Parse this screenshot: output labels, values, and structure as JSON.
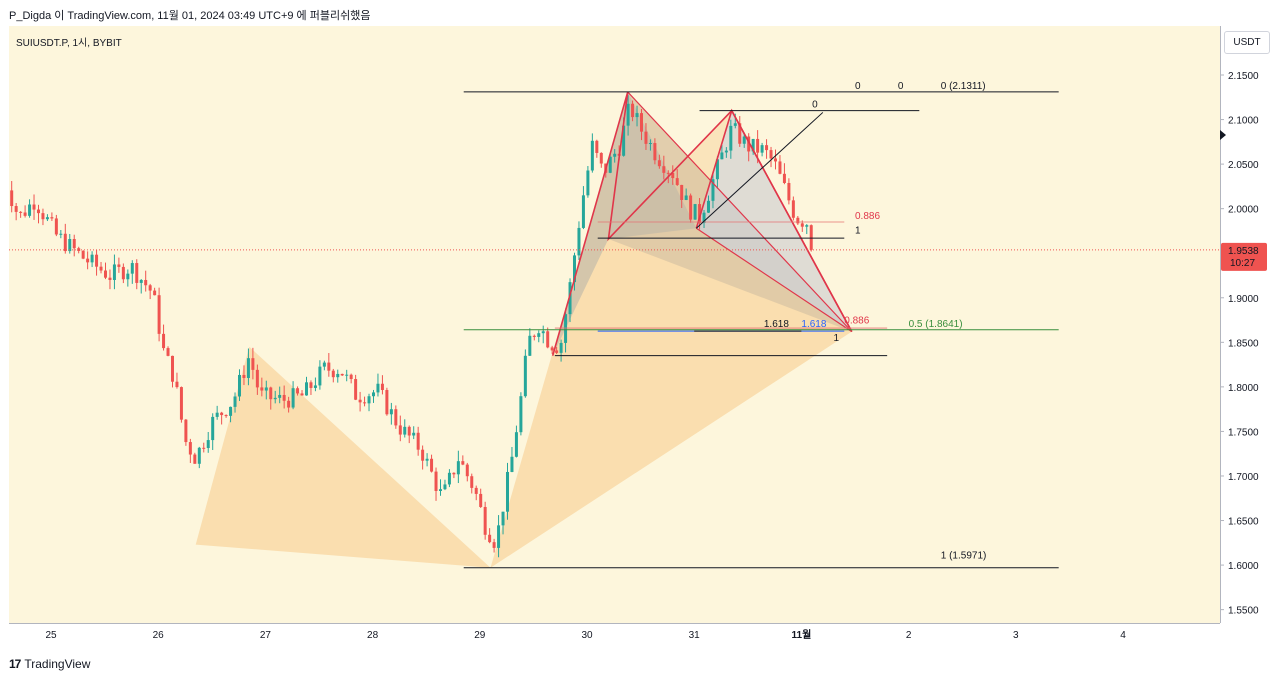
{
  "header": {
    "text": "P_Digda 이 TradingView.com, 11월 01, 2024 03:49 UTC+9 에 퍼블리쉬했음"
  },
  "symbol": "SUIUSDT.P, 1시, BYBIT",
  "currency_button": "USDT",
  "footer": {
    "logo_mark": "17",
    "logo_text": "TradingView"
  },
  "colors": {
    "background": "#fdf6dc",
    "up": "#26a69a",
    "down": "#ef5350",
    "pattern_fill": "#f8d6a0",
    "pattern_gray": "#b4b2a8",
    "harmonic_line": "#e0364a",
    "last_price_bg": "#ef5350"
  },
  "chart_data": {
    "type": "candlestick",
    "x_ticks": [
      "25",
      "26",
      "27",
      "28",
      "29",
      "30",
      "31",
      "11월",
      "2",
      "3",
      "4"
    ],
    "y_ticks": [
      "2.1500",
      "2.1000",
      "2.0500",
      "2.0000",
      "1.9500",
      "1.9000",
      "1.8500",
      "1.8000",
      "1.7500",
      "1.7000",
      "1.6500",
      "1.6000",
      "1.5500"
    ],
    "y_values": [
      2.15,
      2.1,
      2.05,
      2.0,
      1.95,
      1.9,
      1.85,
      1.8,
      1.75,
      1.7,
      1.65,
      1.6,
      1.55
    ],
    "ylim": [
      1.535,
      2.205
    ],
    "last_price": "1.9538",
    "last_price_value": 1.9538,
    "countdown": "10:27",
    "price_path": [
      [
        24.55,
        2.04
      ],
      [
        24.7,
        1.99
      ],
      [
        24.85,
        2.01
      ],
      [
        25.05,
        1.97
      ],
      [
        25.3,
        1.945
      ],
      [
        25.55,
        1.925
      ],
      [
        25.75,
        1.935
      ],
      [
        25.95,
        1.905
      ],
      [
        26.05,
        1.84
      ],
      [
        26.15,
        1.81
      ],
      [
        26.25,
        1.74
      ],
      [
        26.35,
        1.72
      ],
      [
        26.5,
        1.76
      ],
      [
        26.7,
        1.785
      ],
      [
        26.85,
        1.835
      ],
      [
        26.95,
        1.79
      ],
      [
        27.15,
        1.785
      ],
      [
        27.35,
        1.79
      ],
      [
        27.55,
        1.82
      ],
      [
        27.7,
        1.82
      ],
      [
        27.85,
        1.79
      ],
      [
        28.05,
        1.795
      ],
      [
        28.25,
        1.755
      ],
      [
        28.45,
        1.73
      ],
      [
        28.65,
        1.675
      ],
      [
        28.8,
        1.72
      ],
      [
        28.95,
        1.685
      ],
      [
        29.05,
        1.645
      ],
      [
        29.15,
        1.625
      ],
      [
        29.3,
        1.72
      ],
      [
        29.4,
        1.8
      ],
      [
        29.45,
        1.85
      ],
      [
        29.55,
        1.87
      ],
      [
        29.65,
        1.85
      ],
      [
        29.75,
        1.845
      ],
      [
        29.85,
        1.92
      ],
      [
        29.95,
        2.005
      ],
      [
        30.05,
        2.07
      ],
      [
        30.15,
        2.04
      ],
      [
        30.3,
        2.07
      ],
      [
        30.4,
        2.115
      ],
      [
        30.5,
        2.09
      ],
      [
        30.65,
        2.06
      ],
      [
        30.8,
        2.04
      ],
      [
        30.95,
        2.0
      ],
      [
        31.05,
        1.99
      ],
      [
        31.2,
        2.04
      ],
      [
        31.35,
        2.09
      ],
      [
        31.5,
        2.07
      ],
      [
        31.65,
        2.065
      ],
      [
        31.75,
        2.05
      ],
      [
        31.85,
        2.02
      ],
      [
        31.95,
        1.99
      ],
      [
        32.05,
        1.985
      ],
      [
        32.12,
        1.9538
      ]
    ],
    "harmonic_patterns": [
      {
        "name": "pattern-1",
        "points": [
          [
            26.35,
            1.623
          ],
          [
            26.85,
            1.845
          ],
          [
            29.1,
            1.597
          ],
          [
            30.38,
            2.131
          ],
          [
            32.47,
            1.862
          ]
        ]
      },
      {
        "name": "pattern-2",
        "points": [
          [
            29.68,
            1.835
          ],
          [
            30.38,
            2.131
          ],
          [
            30.2,
            1.966
          ],
          [
            31.35,
            2.11
          ],
          [
            32.47,
            1.862
          ]
        ]
      },
      {
        "name": "pattern-3",
        "points": [
          [
            30.2,
            1.966
          ],
          [
            30.38,
            2.131
          ],
          [
            31.02,
            1.978
          ],
          [
            31.35,
            2.11
          ],
          [
            32.47,
            1.862
          ]
        ]
      }
    ],
    "annotations": [
      {
        "text": "0",
        "x": 32.5,
        "y": 2.131,
        "color": "#131722"
      },
      {
        "text": "0",
        "x": 32.9,
        "y": 2.131,
        "color": "#131722"
      },
      {
        "text": "0 (2.1311)",
        "x": 33.3,
        "y": 2.131,
        "color": "#131722"
      },
      {
        "text": "0",
        "x": 32.1,
        "y": 2.11,
        "color": "#131722"
      },
      {
        "text": "0.886",
        "x": 32.5,
        "y": 1.985,
        "color": "#e0364a"
      },
      {
        "text": "1",
        "x": 32.5,
        "y": 1.969,
        "color": "#131722"
      },
      {
        "text": "1.618",
        "x": 31.65,
        "y": 1.864,
        "color": "#131722"
      },
      {
        "text": "1.618",
        "x": 32.0,
        "y": 1.864,
        "color": "#2962ff"
      },
      {
        "text": "0.886",
        "x": 32.4,
        "y": 1.868,
        "color": "#e0364a"
      },
      {
        "text": "0.5 (1.8641)",
        "x": 33.0,
        "y": 1.864,
        "color": "#388e3c"
      },
      {
        "text": "1",
        "x": 32.3,
        "y": 1.848,
        "color": "#131722"
      },
      {
        "text": "1 (1.5971)",
        "x": 33.3,
        "y": 1.604,
        "color": "#131722"
      }
    ]
  }
}
